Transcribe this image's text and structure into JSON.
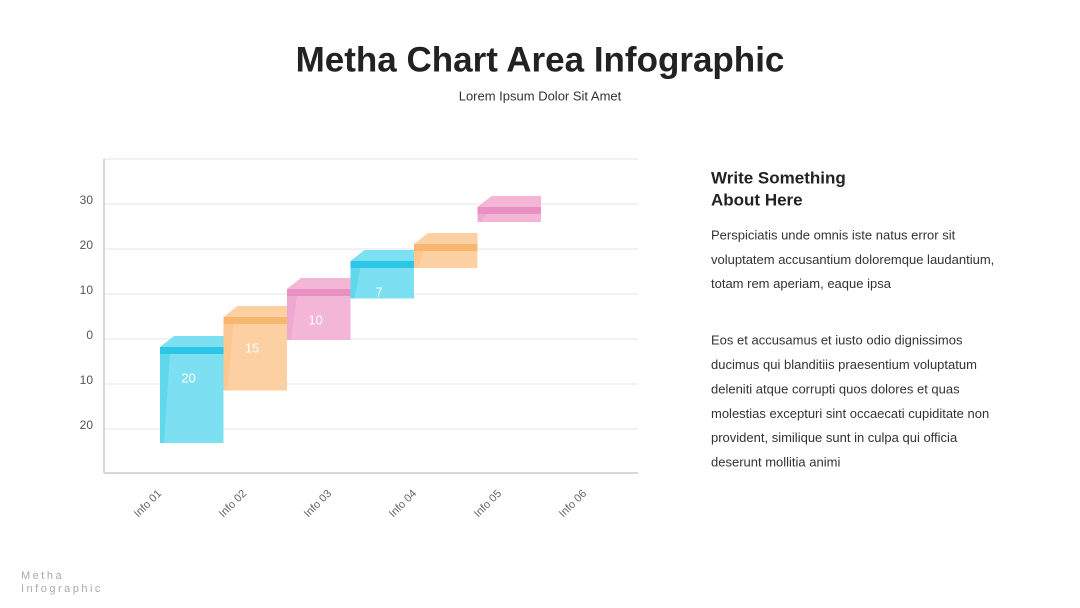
{
  "chart_data": {
    "type": "bar",
    "title": "Metha Chart Area Infographic",
    "subtitle": "Lorem Ipsum Dolor Sit Amet",
    "categories": [
      "Info 01",
      "Info 02",
      "Info 03",
      "Info 04",
      "Info 05",
      "Info 06"
    ],
    "values": [
      20,
      15,
      10,
      7,
      4,
      2
    ],
    "colors": [
      "#7ce0f2",
      "#fdd0a3",
      "#f3b6d7",
      "#7ce0f2",
      "#fdd0a3",
      "#f3b6d7"
    ],
    "cap_colors": [
      "#2cc6e6",
      "#f9b66e",
      "#e990c3",
      "#2cc6e6",
      "#f9b66e",
      "#e990c3"
    ],
    "ylim": [
      -30,
      40
    ],
    "yticks": [
      {
        "value": -20,
        "label": "20"
      },
      {
        "value": -10,
        "label": "10"
      },
      0,
      10,
      20,
      30
    ],
    "grid": true
  },
  "side": {
    "heading": [
      "Write Something",
      "About Here"
    ],
    "paragraphs": [
      [
        "Perspiciatis unde omnis iste natus error sit",
        "voluptatem accusantium doloremque laudantium,",
        "totam rem aperiam, eaque ipsa"
      ],
      [
        "Eos et accusamus et iusto odio dignissimos",
        "ducimus qui blanditiis praesentium voluptatum",
        "deleniti atque corrupti quos dolores et quas",
        "molestias excepturi sint occaecati cupiditate non",
        "provident, similique sunt in culpa qui officia",
        "deserunt mollitia animi"
      ]
    ]
  },
  "footer": [
    "Metha",
    "Infographic"
  ]
}
